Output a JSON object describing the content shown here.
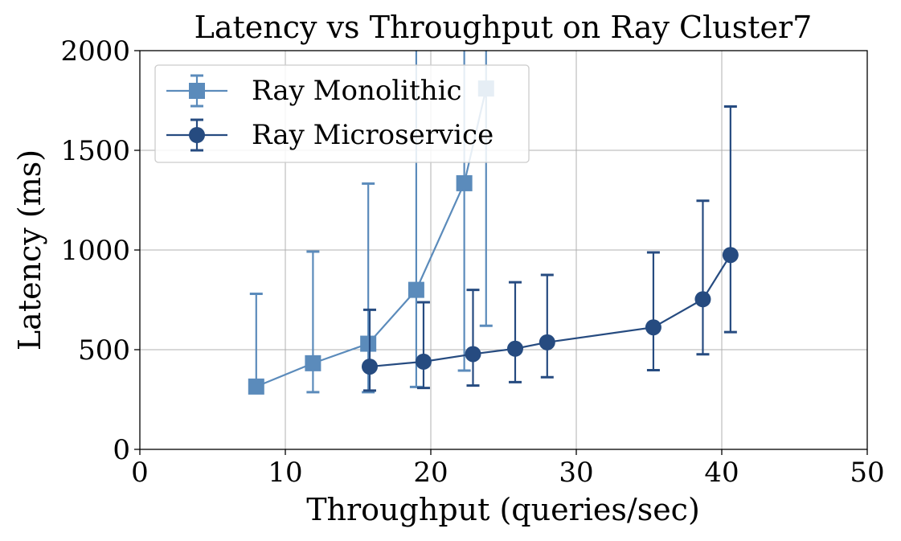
{
  "chart_data": {
    "type": "line",
    "title": "Latency vs Throughput on Ray Cluster7",
    "xlabel": "Throughput (queries/sec)",
    "ylabel": "Latency (ms)",
    "xlim": [
      0,
      50
    ],
    "ylim": [
      0,
      2000
    ],
    "xticks": [
      0,
      10,
      20,
      30,
      40,
      50
    ],
    "yticks": [
      0,
      500,
      1000,
      1500,
      2000
    ],
    "grid": true,
    "legend_position": "top-left",
    "series": [
      {
        "name": "Ray Monolithic",
        "marker": "square",
        "color": "#5b8bbb",
        "points": [
          {
            "x": 8.0,
            "y": 315,
            "err_low": 315,
            "err_high": 780
          },
          {
            "x": 11.9,
            "y": 432,
            "err_low": 287,
            "err_high": 992
          },
          {
            "x": 15.7,
            "y": 530,
            "err_low": 287,
            "err_high": 1333
          },
          {
            "x": 19.0,
            "y": 800,
            "err_low": 313,
            "err_high": 2000
          },
          {
            "x": 22.3,
            "y": 1335,
            "err_low": 395,
            "err_high": 2000
          },
          {
            "x": 23.8,
            "y": 1810,
            "err_low": 620,
            "err_high": 2000
          }
        ]
      },
      {
        "name": "Ray Microservice",
        "marker": "circle",
        "color": "#264b80",
        "points": [
          {
            "x": 15.8,
            "y": 415,
            "err_low": 295,
            "err_high": 700
          },
          {
            "x": 19.5,
            "y": 440,
            "err_low": 308,
            "err_high": 738
          },
          {
            "x": 22.9,
            "y": 478,
            "err_low": 320,
            "err_high": 800
          },
          {
            "x": 25.8,
            "y": 505,
            "err_low": 337,
            "err_high": 838
          },
          {
            "x": 28.0,
            "y": 537,
            "err_low": 362,
            "err_high": 875
          },
          {
            "x": 35.3,
            "y": 612,
            "err_low": 397,
            "err_high": 988
          },
          {
            "x": 38.7,
            "y": 753,
            "err_low": 477,
            "err_high": 1247
          },
          {
            "x": 40.6,
            "y": 975,
            "err_low": 588,
            "err_high": 1720
          }
        ]
      }
    ]
  }
}
